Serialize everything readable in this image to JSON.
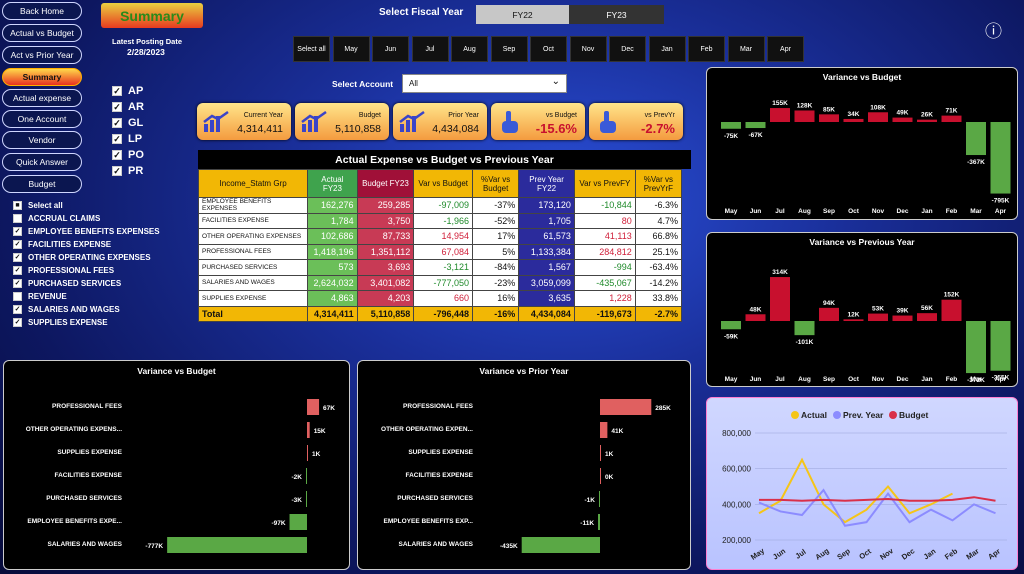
{
  "nav": [
    "Back Home",
    "Actual vs Budget",
    "Act vs Prior Year",
    "Summary",
    "Actual expense",
    "One Account",
    "Vendor",
    "Quick Answer",
    "Budget"
  ],
  "header": {
    "summary": "Summary",
    "posting_label": "Latest Posting Date",
    "posting_date": "2/28/2023",
    "fiscal_label": "Select Fiscal Year",
    "fy_options": [
      "FY22",
      "FY23"
    ],
    "info": "ⓘ"
  },
  "months": [
    "Select all",
    "May",
    "Jun",
    "Jul",
    "Aug",
    "Sep",
    "Oct",
    "Nov",
    "Dec",
    "Jan",
    "Feb",
    "Mar",
    "Apr"
  ],
  "account": {
    "label": "Select Account",
    "value": "All"
  },
  "ledgers": [
    "AP",
    "AR",
    "GL",
    "LP",
    "PO",
    "PR"
  ],
  "categories": [
    "Select all",
    "ACCRUAL CLAIMS",
    "EMPLOYEE BENEFITS EXPENSES",
    "FACILITIES EXPENSE",
    "OTHER OPERATING EXPENSES",
    "PROFESSIONAL FEES",
    "PURCHASED SERVICES",
    "REVENUE",
    "SALARIES AND WAGES",
    "SUPPLIES EXPENSE"
  ],
  "kpis": [
    {
      "label": "Current Year",
      "value": "4,314,411"
    },
    {
      "label": "Budget",
      "value": "5,110,858"
    },
    {
      "label": "Prior Year",
      "value": "4,434,084"
    },
    {
      "label": "vs Budget",
      "value": "-15.6%"
    },
    {
      "label": "vs PrevYr",
      "value": "-2.7%"
    }
  ],
  "table": {
    "title": "Actual Expense vs Budget vs Previous Year",
    "headers": [
      "Income_Statm Grp",
      "Actual FY23",
      "Budget FY23",
      "Var vs Budget",
      "%Var vs Budget",
      "Prev Year FY22",
      "Var vs PrevFY",
      "%Var vs PrevYrF"
    ],
    "rows": [
      [
        "EMPLOYEE BENEFITS EXPENSES",
        "162,276",
        "259,285",
        "-97,009",
        "-37%",
        "173,120",
        "-10,844",
        "-6.3%"
      ],
      [
        "FACILITIES EXPENSE",
        "1,784",
        "3,750",
        "-1,966",
        "-52%",
        "1,705",
        "80",
        "4.7%"
      ],
      [
        "OTHER OPERATING EXPENSES",
        "102,686",
        "87,733",
        "14,954",
        "17%",
        "61,573",
        "41,113",
        "66.8%"
      ],
      [
        "PROFESSIONAL FEES",
        "1,418,196",
        "1,351,112",
        "67,084",
        "5%",
        "1,133,384",
        "284,812",
        "25.1%"
      ],
      [
        "PURCHASED SERVICES",
        "573",
        "3,693",
        "-3,121",
        "-84%",
        "1,567",
        "-994",
        "-63.4%"
      ],
      [
        "SALARIES AND WAGES",
        "2,624,032",
        "3,401,082",
        "-777,050",
        "-23%",
        "3,059,099",
        "-435,067",
        "-14.2%"
      ],
      [
        "SUPPLIES EXPENSE",
        "4,863",
        "4,203",
        "660",
        "16%",
        "3,635",
        "1,228",
        "33.8%"
      ]
    ],
    "total": [
      "Total",
      "4,314,411",
      "5,110,858",
      "-796,448",
      "-16%",
      "4,434,084",
      "-119,673",
      "-2.7%"
    ]
  },
  "chart_data": [
    {
      "type": "bar",
      "title": "Variance vs Budget",
      "categories": [
        "May",
        "Jun",
        "Jul",
        "Aug",
        "Sep",
        "Oct",
        "Nov",
        "Dec",
        "Jan",
        "Feb",
        "Mar",
        "Apr"
      ],
      "values": [
        -75,
        -67,
        155,
        128,
        85,
        34,
        108,
        49,
        26,
        71,
        -367,
        -795
      ],
      "labels": [
        "-75K",
        "-67K",
        "155K",
        "128K",
        "85K",
        "34K",
        "108K",
        "49K",
        "26K",
        "71K",
        "-367K",
        "-795K"
      ]
    },
    {
      "type": "bar",
      "title": "Variance vs Previous Year",
      "categories": [
        "May",
        "Jun",
        "Jul",
        "Aug",
        "Sep",
        "Oct",
        "Nov",
        "Dec",
        "Jan",
        "Feb",
        "Mar",
        "Apr"
      ],
      "values": [
        -59,
        48,
        314,
        -101,
        94,
        12,
        53,
        39,
        56,
        152,
        -372,
        -355
      ],
      "labels": [
        "-59K",
        "48K",
        "314K",
        "-101K",
        "94K",
        "12K",
        "53K",
        "39K",
        "56K",
        "152K",
        "-372K",
        "-355K"
      ]
    },
    {
      "type": "bar",
      "title": "Variance vs Budget",
      "categories": [
        "PROFESSIONAL FEES",
        "OTHER OPERATING EXPENS...",
        "SUPPLIES EXPENSE",
        "FACILITIES EXPENSE",
        "PURCHASED SERVICES",
        "EMPLOYEE BENEFITS EXPE...",
        "SALARIES AND WAGES"
      ],
      "values": [
        67,
        15,
        1,
        -2,
        -3,
        -97,
        -777
      ],
      "labels": [
        "67K",
        "15K",
        "1K",
        "-2K",
        "-3K",
        "-97K",
        "-777K"
      ]
    },
    {
      "type": "bar",
      "title": "Variance vs Prior Year",
      "categories": [
        "PROFESSIONAL FEES",
        "OTHER OPERATING EXPEN...",
        "SUPPLIES EXPENSE",
        "FACILITIES EXPENSE",
        "PURCHASED SERVICES",
        "EMPLOYEE BENEFITS EXP...",
        "SALARIES AND WAGES"
      ],
      "values": [
        285,
        41,
        1,
        0,
        -1,
        -11,
        -435
      ],
      "labels": [
        "285K",
        "41K",
        "1K",
        "0K",
        "-1K",
        "-11K",
        "-435K"
      ]
    },
    {
      "type": "line",
      "categories": [
        "May",
        "Jun",
        "Jul",
        "Aug",
        "Sep",
        "Oct",
        "Nov",
        "Dec",
        "Jan",
        "Feb",
        "Mar",
        "Apr"
      ],
      "ylim": [
        200000,
        800000
      ],
      "yticks": [
        "800,000",
        "600,000",
        "400,000",
        "200,000"
      ],
      "series": [
        {
          "name": "Actual",
          "color": "#f5c518",
          "values": [
            350000,
            420000,
            650000,
            400000,
            300000,
            370000,
            500000,
            350000,
            400000,
            460000,
            null,
            null
          ]
        },
        {
          "name": "Prev. Year",
          "color": "#8c8cff",
          "values": [
            410000,
            360000,
            340000,
            480000,
            280000,
            300000,
            460000,
            300000,
            370000,
            310000,
            400000,
            350000
          ]
        },
        {
          "name": "Budget",
          "color": "#d9304a",
          "values": [
            425000,
            425000,
            420000,
            425000,
            420000,
            425000,
            430000,
            420000,
            420000,
            425000,
            440000,
            420000
          ]
        }
      ]
    }
  ]
}
